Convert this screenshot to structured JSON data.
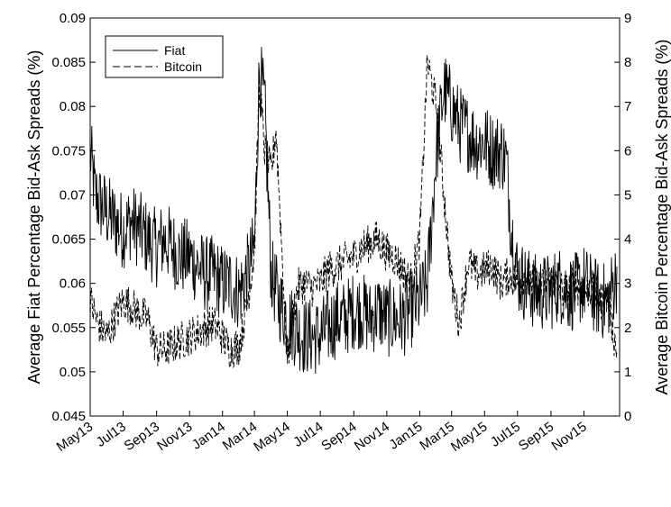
{
  "chart_data": {
    "type": "line",
    "title": "",
    "x_range": [
      "2013-05-01",
      "2016-01-06"
    ],
    "x_tick_labels": [
      "May13",
      "Jul13",
      "Sep13",
      "Nov13",
      "Jan14",
      "Mar14",
      "May14",
      "Jul14",
      "Sep14",
      "Nov14",
      "Jan15",
      "Mar15",
      "May15",
      "Jul15",
      "Sep15",
      "Nov15"
    ],
    "x_tick_dates": [
      "2013-05-01",
      "2013-07-01",
      "2013-09-01",
      "2013-11-01",
      "2014-01-01",
      "2014-03-01",
      "2014-05-01",
      "2014-07-01",
      "2014-09-01",
      "2014-11-01",
      "2015-01-01",
      "2015-03-01",
      "2015-05-01",
      "2015-07-01",
      "2015-09-01",
      "2015-11-01"
    ],
    "y_left": {
      "label": "Average Fiat Percentage Bid-Ask Spreads (%)",
      "range": [
        0.045,
        0.09
      ],
      "ticks": [
        "0.045",
        "0.05",
        "0.055",
        "0.06",
        "0.065",
        "0.07",
        "0.075",
        "0.08",
        "0.085",
        "0.09"
      ]
    },
    "y_right": {
      "label": "Average Bitcoin Percentage Bid-Ask Spreads (%)",
      "range": [
        0,
        9
      ],
      "ticks": [
        "0",
        "1",
        "2",
        "3",
        "4",
        "5",
        "6",
        "7",
        "8",
        "9"
      ]
    },
    "legend": {
      "position": "top-left",
      "entries": [
        "Fiat",
        "Bitcoin"
      ]
    },
    "series": [
      {
        "name": "Fiat",
        "axis": "left",
        "style": "solid",
        "x": [
          "2013-05-01",
          "2013-05-10",
          "2013-05-20",
          "2013-06-01",
          "2013-06-15",
          "2013-07-01",
          "2013-07-15",
          "2013-08-01",
          "2013-08-15",
          "2013-09-01",
          "2013-09-15",
          "2013-10-01",
          "2013-10-15",
          "2013-11-01",
          "2013-11-15",
          "2013-12-01",
          "2013-12-15",
          "2014-01-01",
          "2014-01-15",
          "2014-02-01",
          "2014-02-15",
          "2014-03-01",
          "2014-03-10",
          "2014-03-20",
          "2014-04-01",
          "2014-04-15",
          "2014-05-01",
          "2014-05-15",
          "2014-06-01",
          "2014-06-15",
          "2014-07-01",
          "2014-07-15",
          "2014-08-01",
          "2014-08-15",
          "2014-09-01",
          "2014-09-15",
          "2014-10-01",
          "2014-10-15",
          "2014-11-01",
          "2014-11-15",
          "2014-12-01",
          "2014-12-15",
          "2015-01-01",
          "2015-01-15",
          "2015-02-01",
          "2015-02-15",
          "2015-03-01",
          "2015-03-15",
          "2015-04-01",
          "2015-04-15",
          "2015-05-01",
          "2015-05-15",
          "2015-06-01",
          "2015-06-10",
          "2015-06-20",
          "2015-07-01",
          "2015-07-15",
          "2015-08-01",
          "2015-08-15",
          "2015-09-01",
          "2015-09-15",
          "2015-10-01",
          "2015-10-15",
          "2015-11-01",
          "2015-11-15",
          "2015-12-01",
          "2015-12-15",
          "2016-01-01"
        ],
        "values": [
          0.075,
          0.07,
          0.069,
          0.068,
          0.067,
          0.066,
          0.067,
          0.066,
          0.065,
          0.064,
          0.065,
          0.064,
          0.063,
          0.063,
          0.062,
          0.061,
          0.061,
          0.06,
          0.06,
          0.059,
          0.061,
          0.064,
          0.084,
          0.08,
          0.061,
          0.058,
          0.056,
          0.055,
          0.054,
          0.054,
          0.054,
          0.055,
          0.056,
          0.056,
          0.057,
          0.057,
          0.056,
          0.057,
          0.056,
          0.056,
          0.056,
          0.057,
          0.058,
          0.06,
          0.075,
          0.082,
          0.08,
          0.078,
          0.077,
          0.076,
          0.076,
          0.075,
          0.075,
          0.074,
          0.066,
          0.061,
          0.06,
          0.059,
          0.059,
          0.059,
          0.06,
          0.059,
          0.059,
          0.06,
          0.059,
          0.058,
          0.058,
          0.061
        ]
      },
      {
        "name": "Bitcoin",
        "axis": "right",
        "style": "dashed",
        "x": [
          "2013-05-01",
          "2013-05-15",
          "2013-06-01",
          "2013-06-15",
          "2013-07-01",
          "2013-07-15",
          "2013-08-01",
          "2013-08-15",
          "2013-09-01",
          "2013-09-15",
          "2013-10-01",
          "2013-10-15",
          "2013-11-01",
          "2013-11-15",
          "2013-12-01",
          "2013-12-15",
          "2014-01-01",
          "2014-01-15",
          "2014-02-01",
          "2014-02-15",
          "2014-03-01",
          "2014-03-10",
          "2014-03-20",
          "2014-04-01",
          "2014-04-10",
          "2014-04-20",
          "2014-05-01",
          "2014-05-10",
          "2014-05-20",
          "2014-06-01",
          "2014-06-15",
          "2014-07-01",
          "2014-07-15",
          "2014-08-01",
          "2014-08-15",
          "2014-09-01",
          "2014-09-15",
          "2014-10-01",
          "2014-10-15",
          "2014-11-01",
          "2014-11-15",
          "2014-12-01",
          "2014-12-15",
          "2015-01-01",
          "2015-01-15",
          "2015-02-01",
          "2015-02-15",
          "2015-03-01",
          "2015-03-15",
          "2015-04-01",
          "2015-04-15",
          "2015-05-01",
          "2015-05-15",
          "2015-06-01",
          "2015-06-15",
          "2015-07-01",
          "2015-07-15",
          "2015-08-01",
          "2015-08-15",
          "2015-09-01",
          "2015-09-15",
          "2015-10-01",
          "2015-10-15",
          "2015-11-01",
          "2015-11-15",
          "2015-12-01",
          "2015-12-15",
          "2016-01-01"
        ],
        "values": [
          2.6,
          2.1,
          1.8,
          2.2,
          2.6,
          2.5,
          2.3,
          2.2,
          1.5,
          1.5,
          1.6,
          1.7,
          1.8,
          1.9,
          2.0,
          2.1,
          1.8,
          1.5,
          1.6,
          2.5,
          3.7,
          7.5,
          6.0,
          5.5,
          6.5,
          4.0,
          1.2,
          2.2,
          2.9,
          3.0,
          2.9,
          3.0,
          3.3,
          3.4,
          3.5,
          3.6,
          3.8,
          3.9,
          4.0,
          3.7,
          3.6,
          3.3,
          3.0,
          4.0,
          8.0,
          7.0,
          5.0,
          3.0,
          2.1,
          3.5,
          3.2,
          3.3,
          3.4,
          3.0,
          3.2,
          3.0,
          3.2,
          3.0,
          2.9,
          3.1,
          2.9,
          2.8,
          3.0,
          2.8,
          2.9,
          2.6,
          2.7,
          1.4
        ]
      }
    ]
  }
}
